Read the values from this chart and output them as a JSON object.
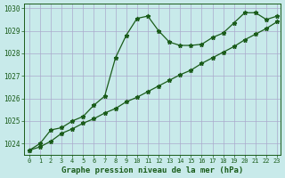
{
  "title": "Graphe pression niveau de la mer (hPa)",
  "background_color": "#c8eaea",
  "grid_color": "#aaaacc",
  "line_color": "#1a5c1a",
  "marker_color": "#1a5c1a",
  "xlim": [
    0,
    23
  ],
  "ylim": [
    1023.5,
    1030.2
  ],
  "yticks": [
    1024,
    1025,
    1026,
    1027,
    1028,
    1029,
    1030
  ],
  "xticks": [
    0,
    1,
    2,
    3,
    4,
    5,
    6,
    7,
    8,
    9,
    10,
    11,
    12,
    13,
    14,
    15,
    16,
    17,
    18,
    19,
    20,
    21,
    22,
    23
  ],
  "series1": {
    "x": [
      0,
      1,
      2,
      3,
      4,
      5,
      6,
      7,
      8,
      9,
      10,
      11,
      12,
      13,
      14,
      15,
      16,
      17,
      18,
      19,
      20,
      21,
      22,
      23
    ],
    "y": [
      1023.7,
      1024.0,
      1024.6,
      1024.7,
      1025.0,
      1025.2,
      1025.7,
      1026.1,
      1027.8,
      1028.8,
      1029.55,
      1029.65,
      1029.0,
      1028.5,
      1028.35,
      1028.35,
      1028.4,
      1028.7,
      1028.9,
      1029.35,
      1029.8,
      1029.8,
      1029.5,
      1029.65
    ]
  },
  "series2": {
    "x": [
      0,
      1,
      2,
      3,
      4,
      5,
      6,
      7,
      8,
      9,
      10,
      11,
      12,
      13,
      14,
      15,
      16,
      17,
      18,
      19,
      20,
      21,
      22,
      23
    ],
    "y": [
      1023.7,
      1023.85,
      1024.1,
      1024.45,
      1024.65,
      1024.9,
      1025.1,
      1025.35,
      1025.55,
      1025.85,
      1026.05,
      1026.3,
      1026.55,
      1026.8,
      1027.05,
      1027.25,
      1027.55,
      1027.8,
      1028.05,
      1028.3,
      1028.6,
      1028.85,
      1029.1,
      1029.4
    ]
  }
}
